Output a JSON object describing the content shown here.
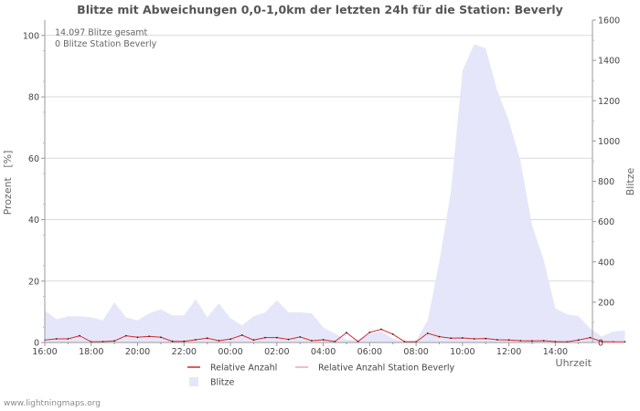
{
  "chart_data": {
    "type": "area",
    "title": "Blitze mit Abweichungen 0,0-1,0km der letzten 24h für die Station: Beverly",
    "annotations": [
      "14.097 Blitze gesamt",
      "0 Blitze Station Beverly"
    ],
    "xlabel": "Uhrzeit",
    "ylabel_left": "Prozent   [%]",
    "ylabel_right": "Blitze",
    "ylim_left": [
      0,
      105
    ],
    "ylim_right": [
      0,
      1600
    ],
    "left_ticks": [
      0,
      20,
      40,
      60,
      80,
      100
    ],
    "right_ticks": [
      0,
      200,
      400,
      600,
      800,
      1000,
      1200,
      1400,
      1600
    ],
    "x_tick_labels": [
      "16:00",
      "18:00",
      "20:00",
      "22:00",
      "00:00",
      "02:00",
      "04:00",
      "06:00",
      "08:00",
      "10:00",
      "12:00",
      "14:00"
    ],
    "x_start_hour": 16,
    "x_span_hours": 23.6,
    "step_hours": 0.5,
    "series": [
      {
        "name": "Blitze",
        "axis": "right",
        "style": "area",
        "color": "#e6e6fa",
        "values": [
          160,
          115,
          130,
          130,
          125,
          110,
          200,
          125,
          110,
          145,
          165,
          135,
          135,
          215,
          125,
          195,
          120,
          85,
          130,
          150,
          210,
          150,
          150,
          145,
          75,
          45,
          15,
          15,
          45,
          55,
          20,
          5,
          10,
          110,
          400,
          750,
          1350,
          1480,
          1460,
          1250,
          1100,
          900,
          580,
          410,
          170,
          140,
          130,
          70,
          30,
          55,
          60
        ]
      },
      {
        "name": "Relative Anzahl",
        "axis": "left",
        "style": "line",
        "color": "#d62728",
        "values": [
          0.8,
          1.2,
          1.2,
          2.2,
          0.2,
          0.3,
          0.5,
          2.2,
          1.7,
          2.0,
          1.7,
          0.4,
          0.4,
          0.9,
          1.4,
          0.6,
          1.1,
          2.4,
          0.8,
          1.6,
          1.6,
          1.0,
          1.8,
          0.6,
          0.9,
          0.3,
          3.2,
          0.3,
          3.3,
          4.3,
          2.7,
          0.3,
          0.2,
          3.0,
          1.9,
          1.4,
          1.5,
          1.2,
          1.3,
          0.9,
          0.8,
          0.6,
          0.5,
          0.6,
          0.3,
          0.2,
          0.8,
          1.6,
          0.3,
          0.2,
          0.2
        ]
      },
      {
        "name": "Relative Anzahl Station Beverly",
        "axis": "left",
        "style": "line",
        "color": "#f4a6a6",
        "values": [
          0,
          0,
          0,
          0,
          0,
          0,
          0,
          0,
          0,
          0,
          0,
          0,
          0,
          0,
          0,
          0,
          0,
          0,
          0,
          0,
          0,
          0,
          0,
          0,
          0,
          0,
          0,
          0,
          0,
          0,
          0,
          0,
          0,
          0,
          0,
          0,
          0,
          0,
          0,
          0,
          0,
          0,
          0,
          0,
          0,
          0,
          0,
          0,
          0,
          0,
          0
        ]
      }
    ],
    "legend": [
      {
        "label": "Relative Anzahl",
        "kind": "line",
        "color": "#d62728"
      },
      {
        "label": "Relative Anzahl Station Beverly",
        "kind": "line",
        "color": "#f4a6a6"
      },
      {
        "label": "Blitze",
        "kind": "area",
        "color": "#e6e6fa"
      }
    ],
    "grid": true,
    "legend_position": "bottom"
  },
  "footer": {
    "source": "www.lightningmaps.org"
  }
}
